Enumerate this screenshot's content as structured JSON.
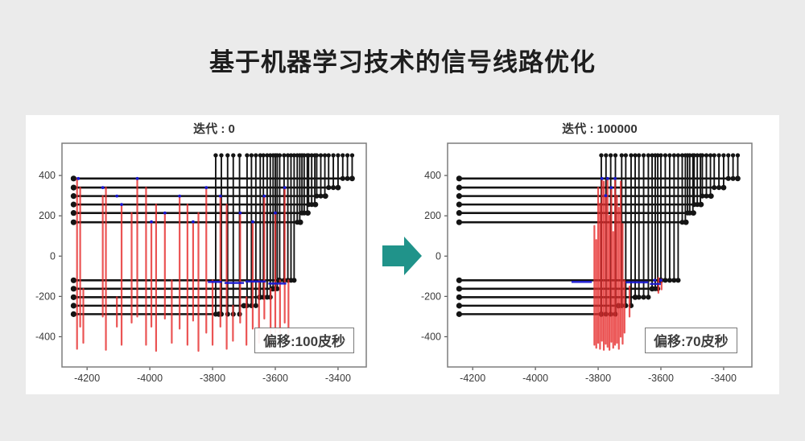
{
  "page": {
    "title": "基于机器学习技术的信号线路优化",
    "background": "#ebebeb",
    "panel_background": "#ffffff"
  },
  "arrow": {
    "icon": "right-block-arrow",
    "color": "#20938a"
  },
  "colors": {
    "wire": "#141414",
    "red": "#e62e2e",
    "blue": "#1616d1",
    "frame": "#7d7d7d",
    "tick": "#555555",
    "tick_label": "#3a3a3a"
  },
  "chart_data": [
    {
      "type": "line",
      "title": "迭代 : 0",
      "annotation": "偏移:100皮秒",
      "xlim": [
        -4280,
        -3310
      ],
      "ylim": [
        -550,
        560
      ],
      "xticks": [
        -4200,
        -4000,
        -3800,
        -3600,
        -3400
      ],
      "yticks": [
        400,
        200,
        0,
        -200,
        -400
      ],
      "wire_start_x": -4243,
      "pin_top_y": 500,
      "wires": [
        {
          "y": 385,
          "x_end": -3355
        },
        {
          "y": 340,
          "x_end": -3400
        },
        {
          "y": 298,
          "x_end": -3440
        },
        {
          "y": 256,
          "x_end": -3472
        },
        {
          "y": 214,
          "x_end": -3496
        },
        {
          "y": 168,
          "x_end": -3520
        },
        {
          "y": -120,
          "x_end": -3588
        },
        {
          "y": -162,
          "x_end": -3608
        },
        {
          "y": -204,
          "x_end": -3650
        },
        {
          "y": -246,
          "x_end": -3700
        },
        {
          "y": -288,
          "x_end": -3780
        }
      ],
      "pins": [
        [
          -3355,
          385
        ],
        [
          -3370,
          385
        ],
        [
          -3385,
          385
        ],
        [
          -3400,
          340
        ],
        [
          -3415,
          340
        ],
        [
          -3430,
          340
        ],
        [
          -3442,
          298
        ],
        [
          -3455,
          298
        ],
        [
          -3468,
          298
        ],
        [
          -3474,
          256
        ],
        [
          -3484,
          256
        ],
        [
          -3494,
          256
        ],
        [
          -3498,
          214
        ],
        [
          -3508,
          214
        ],
        [
          -3515,
          214
        ],
        [
          -3522,
          168
        ],
        [
          -3530,
          168
        ],
        [
          -3540,
          -120
        ],
        [
          -3550,
          -120
        ],
        [
          -3560,
          -120
        ],
        [
          -3572,
          -120
        ],
        [
          -3586,
          -120
        ],
        [
          -3594,
          -162
        ],
        [
          -3600,
          -162
        ],
        [
          -3607,
          -162
        ],
        [
          -3616,
          -204
        ],
        [
          -3626,
          -204
        ],
        [
          -3638,
          -204
        ],
        [
          -3648,
          -204
        ],
        [
          -3662,
          -246
        ],
        [
          -3676,
          -246
        ],
        [
          -3690,
          -246
        ],
        [
          -3714,
          -288
        ],
        [
          -3734,
          -288
        ],
        [
          -3752,
          -288
        ],
        [
          -3772,
          -288
        ],
        [
          -3790,
          -288
        ]
      ],
      "reds": [
        [
          -4232,
          385,
          -460
        ],
        [
          -4222,
          340,
          -350
        ],
        [
          -4212,
          -162,
          -430
        ],
        [
          -4150,
          298,
          -300
        ],
        [
          -4140,
          340,
          -465
        ],
        [
          -4105,
          -204,
          -350
        ],
        [
          -4090,
          256,
          -440
        ],
        [
          -4058,
          214,
          -330
        ],
        [
          -4040,
          385,
          -300
        ],
        [
          -4012,
          340,
          -440
        ],
        [
          -3995,
          170,
          -350
        ],
        [
          -3980,
          256,
          -470
        ],
        [
          -3952,
          214,
          -310
        ],
        [
          -3930,
          -120,
          -430
        ],
        [
          -3905,
          298,
          -360
        ],
        [
          -3880,
          256,
          -440
        ],
        [
          -3862,
          170,
          -320
        ],
        [
          -3845,
          214,
          -470
        ],
        [
          -3820,
          340,
          -380
        ],
        [
          -3800,
          -120,
          -440
        ],
        [
          -3775,
          298,
          -350
        ],
        [
          -3755,
          256,
          -460
        ],
        [
          -3735,
          -246,
          -420
        ],
        [
          -3712,
          214,
          -330
        ],
        [
          -3692,
          -204,
          -440
        ],
        [
          -3672,
          170,
          -360
        ],
        [
          -3652,
          -120,
          -430
        ],
        [
          -3635,
          298,
          -310
        ],
        [
          -3615,
          -162,
          -450
        ],
        [
          -3600,
          214,
          -380
        ],
        [
          -3585,
          -120,
          -440
        ],
        [
          -3570,
          340,
          -330
        ],
        [
          -3558,
          -120,
          -410
        ]
      ],
      "blues": [
        [
          -3815,
          -3770,
          -128
        ],
        [
          -3762,
          -3700,
          -133
        ],
        [
          -3695,
          -3630,
          -126
        ],
        [
          -3622,
          -3565,
          -136
        ]
      ],
      "blue_dots": [
        [
          -4228,
          385
        ],
        [
          -4150,
          340
        ],
        [
          -4105,
          298
        ],
        [
          -4090,
          256
        ],
        [
          -4040,
          385
        ],
        [
          -3995,
          170
        ],
        [
          -3952,
          214
        ],
        [
          -3905,
          298
        ],
        [
          -3862,
          170
        ],
        [
          -3820,
          340
        ],
        [
          -3775,
          298
        ],
        [
          -3712,
          214
        ],
        [
          -3672,
          170
        ],
        [
          -3635,
          298
        ],
        [
          -3600,
          214
        ],
        [
          -3570,
          340
        ]
      ]
    },
    {
      "type": "line",
      "title": "迭代 : 100000",
      "annotation": "偏移:70皮秒",
      "xlim": [
        -4280,
        -3310
      ],
      "ylim": [
        -550,
        560
      ],
      "xticks": [
        -4200,
        -4000,
        -3800,
        -3600,
        -3400
      ],
      "yticks": [
        400,
        200,
        0,
        -200,
        -400
      ],
      "wire_start_x": -4243,
      "pin_top_y": 500,
      "wires": [
        {
          "y": 385,
          "x_end": -3355
        },
        {
          "y": 340,
          "x_end": -3400
        },
        {
          "y": 298,
          "x_end": -3440
        },
        {
          "y": 256,
          "x_end": -3472
        },
        {
          "y": 214,
          "x_end": -3496
        },
        {
          "y": 168,
          "x_end": -3520
        },
        {
          "y": -120,
          "x_end": -3600
        },
        {
          "y": -162,
          "x_end": -3628
        },
        {
          "y": -204,
          "x_end": -3682
        },
        {
          "y": -246,
          "x_end": -3735
        },
        {
          "y": -288,
          "x_end": -3790
        }
      ],
      "pins": [
        [
          -3355,
          385
        ],
        [
          -3370,
          385
        ],
        [
          -3385,
          385
        ],
        [
          -3400,
          340
        ],
        [
          -3415,
          340
        ],
        [
          -3430,
          340
        ],
        [
          -3442,
          298
        ],
        [
          -3455,
          298
        ],
        [
          -3468,
          298
        ],
        [
          -3474,
          256
        ],
        [
          -3484,
          256
        ],
        [
          -3494,
          256
        ],
        [
          -3498,
          214
        ],
        [
          -3508,
          214
        ],
        [
          -3515,
          214
        ],
        [
          -3522,
          168
        ],
        [
          -3532,
          168
        ],
        [
          -3545,
          -120
        ],
        [
          -3558,
          -120
        ],
        [
          -3572,
          -120
        ],
        [
          -3586,
          -120
        ],
        [
          -3600,
          -120
        ],
        [
          -3610,
          -162
        ],
        [
          -3618,
          -162
        ],
        [
          -3628,
          -162
        ],
        [
          -3640,
          -204
        ],
        [
          -3655,
          -204
        ],
        [
          -3670,
          -204
        ],
        [
          -3682,
          -204
        ],
        [
          -3695,
          -246
        ],
        [
          -3712,
          -246
        ],
        [
          -3725,
          -246
        ],
        [
          -3745,
          -288
        ],
        [
          -3760,
          -288
        ],
        [
          -3775,
          -288
        ],
        [
          -3790,
          -288
        ]
      ],
      "reds": [
        [
          -3812,
          150,
          -440
        ],
        [
          -3806,
          80,
          -455
        ],
        [
          -3800,
          340,
          -430
        ],
        [
          -3794,
          260,
          -460
        ],
        [
          -3788,
          385,
          -420
        ],
        [
          -3782,
          370,
          -465
        ],
        [
          -3776,
          300,
          -435
        ],
        [
          -3770,
          385,
          -450
        ],
        [
          -3764,
          200,
          -465
        ],
        [
          -3758,
          340,
          -425
        ],
        [
          -3752,
          120,
          -455
        ],
        [
          -3746,
          385,
          -440
        ],
        [
          -3740,
          300,
          -430
        ],
        [
          -3734,
          240,
          -460
        ],
        [
          -3728,
          370,
          -400
        ],
        [
          -3722,
          160,
          -435
        ],
        [
          -3716,
          -120,
          -380
        ],
        [
          -3700,
          -150,
          -300
        ],
        [
          -3608,
          -108,
          -182
        ],
        [
          -3598,
          -115,
          -165
        ]
      ],
      "blues": [
        [
          -3885,
          -3820,
          -128
        ],
        [
          -3712,
          -3640,
          -130
        ],
        [
          -3635,
          -3600,
          -138
        ]
      ],
      "blue_dots": [
        [
          -3788,
          385
        ],
        [
          -3770,
          385
        ],
        [
          -3746,
          385
        ],
        [
          -3776,
          300
        ],
        [
          -3758,
          340
        ],
        [
          -3620,
          -120
        ],
        [
          -3600,
          -120
        ]
      ]
    }
  ]
}
